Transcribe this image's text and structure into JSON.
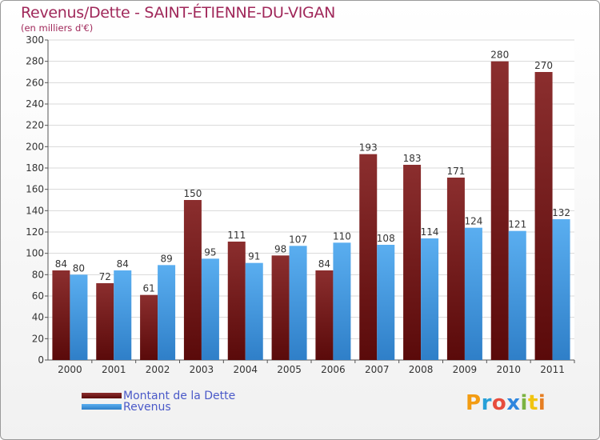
{
  "chart_data": {
    "type": "bar",
    "title": "Revenus/Dette - SAINT-ÉTIENNE-DU-VIGAN",
    "subtitle": "(en milliers d'€)",
    "categories": [
      "2000",
      "2001",
      "2002",
      "2003",
      "2004",
      "2005",
      "2006",
      "2007",
      "2008",
      "2009",
      "2010",
      "2011"
    ],
    "series": [
      {
        "name": "Montant de la Dette",
        "color": "#7a1a1a",
        "values": [
          84,
          72,
          61,
          150,
          111,
          98,
          84,
          193,
          183,
          171,
          280,
          270
        ]
      },
      {
        "name": "Revenus",
        "color": "#4a9fe0",
        "values": [
          80,
          84,
          89,
          95,
          91,
          107,
          110,
          108,
          114,
          124,
          121,
          132
        ]
      }
    ],
    "ylim": [
      0,
      300
    ],
    "yticks": [
      0,
      20,
      40,
      60,
      80,
      100,
      120,
      140,
      160,
      180,
      200,
      220,
      240,
      260,
      280,
      300
    ],
    "grid": true,
    "legend": "bottom-left"
  },
  "logo": {
    "text": "Proxiti",
    "letters": [
      {
        "ch": "P",
        "color": "#f39c12"
      },
      {
        "ch": "r",
        "color": "#27a0d8"
      },
      {
        "ch": "o",
        "color": "#e74c3c"
      },
      {
        "ch": "x",
        "color": "#2e86de"
      },
      {
        "ch": "i",
        "color": "#7cb342"
      },
      {
        "ch": "t",
        "color": "#f1c40f"
      },
      {
        "ch": "i",
        "color": "#e67e22"
      }
    ]
  }
}
